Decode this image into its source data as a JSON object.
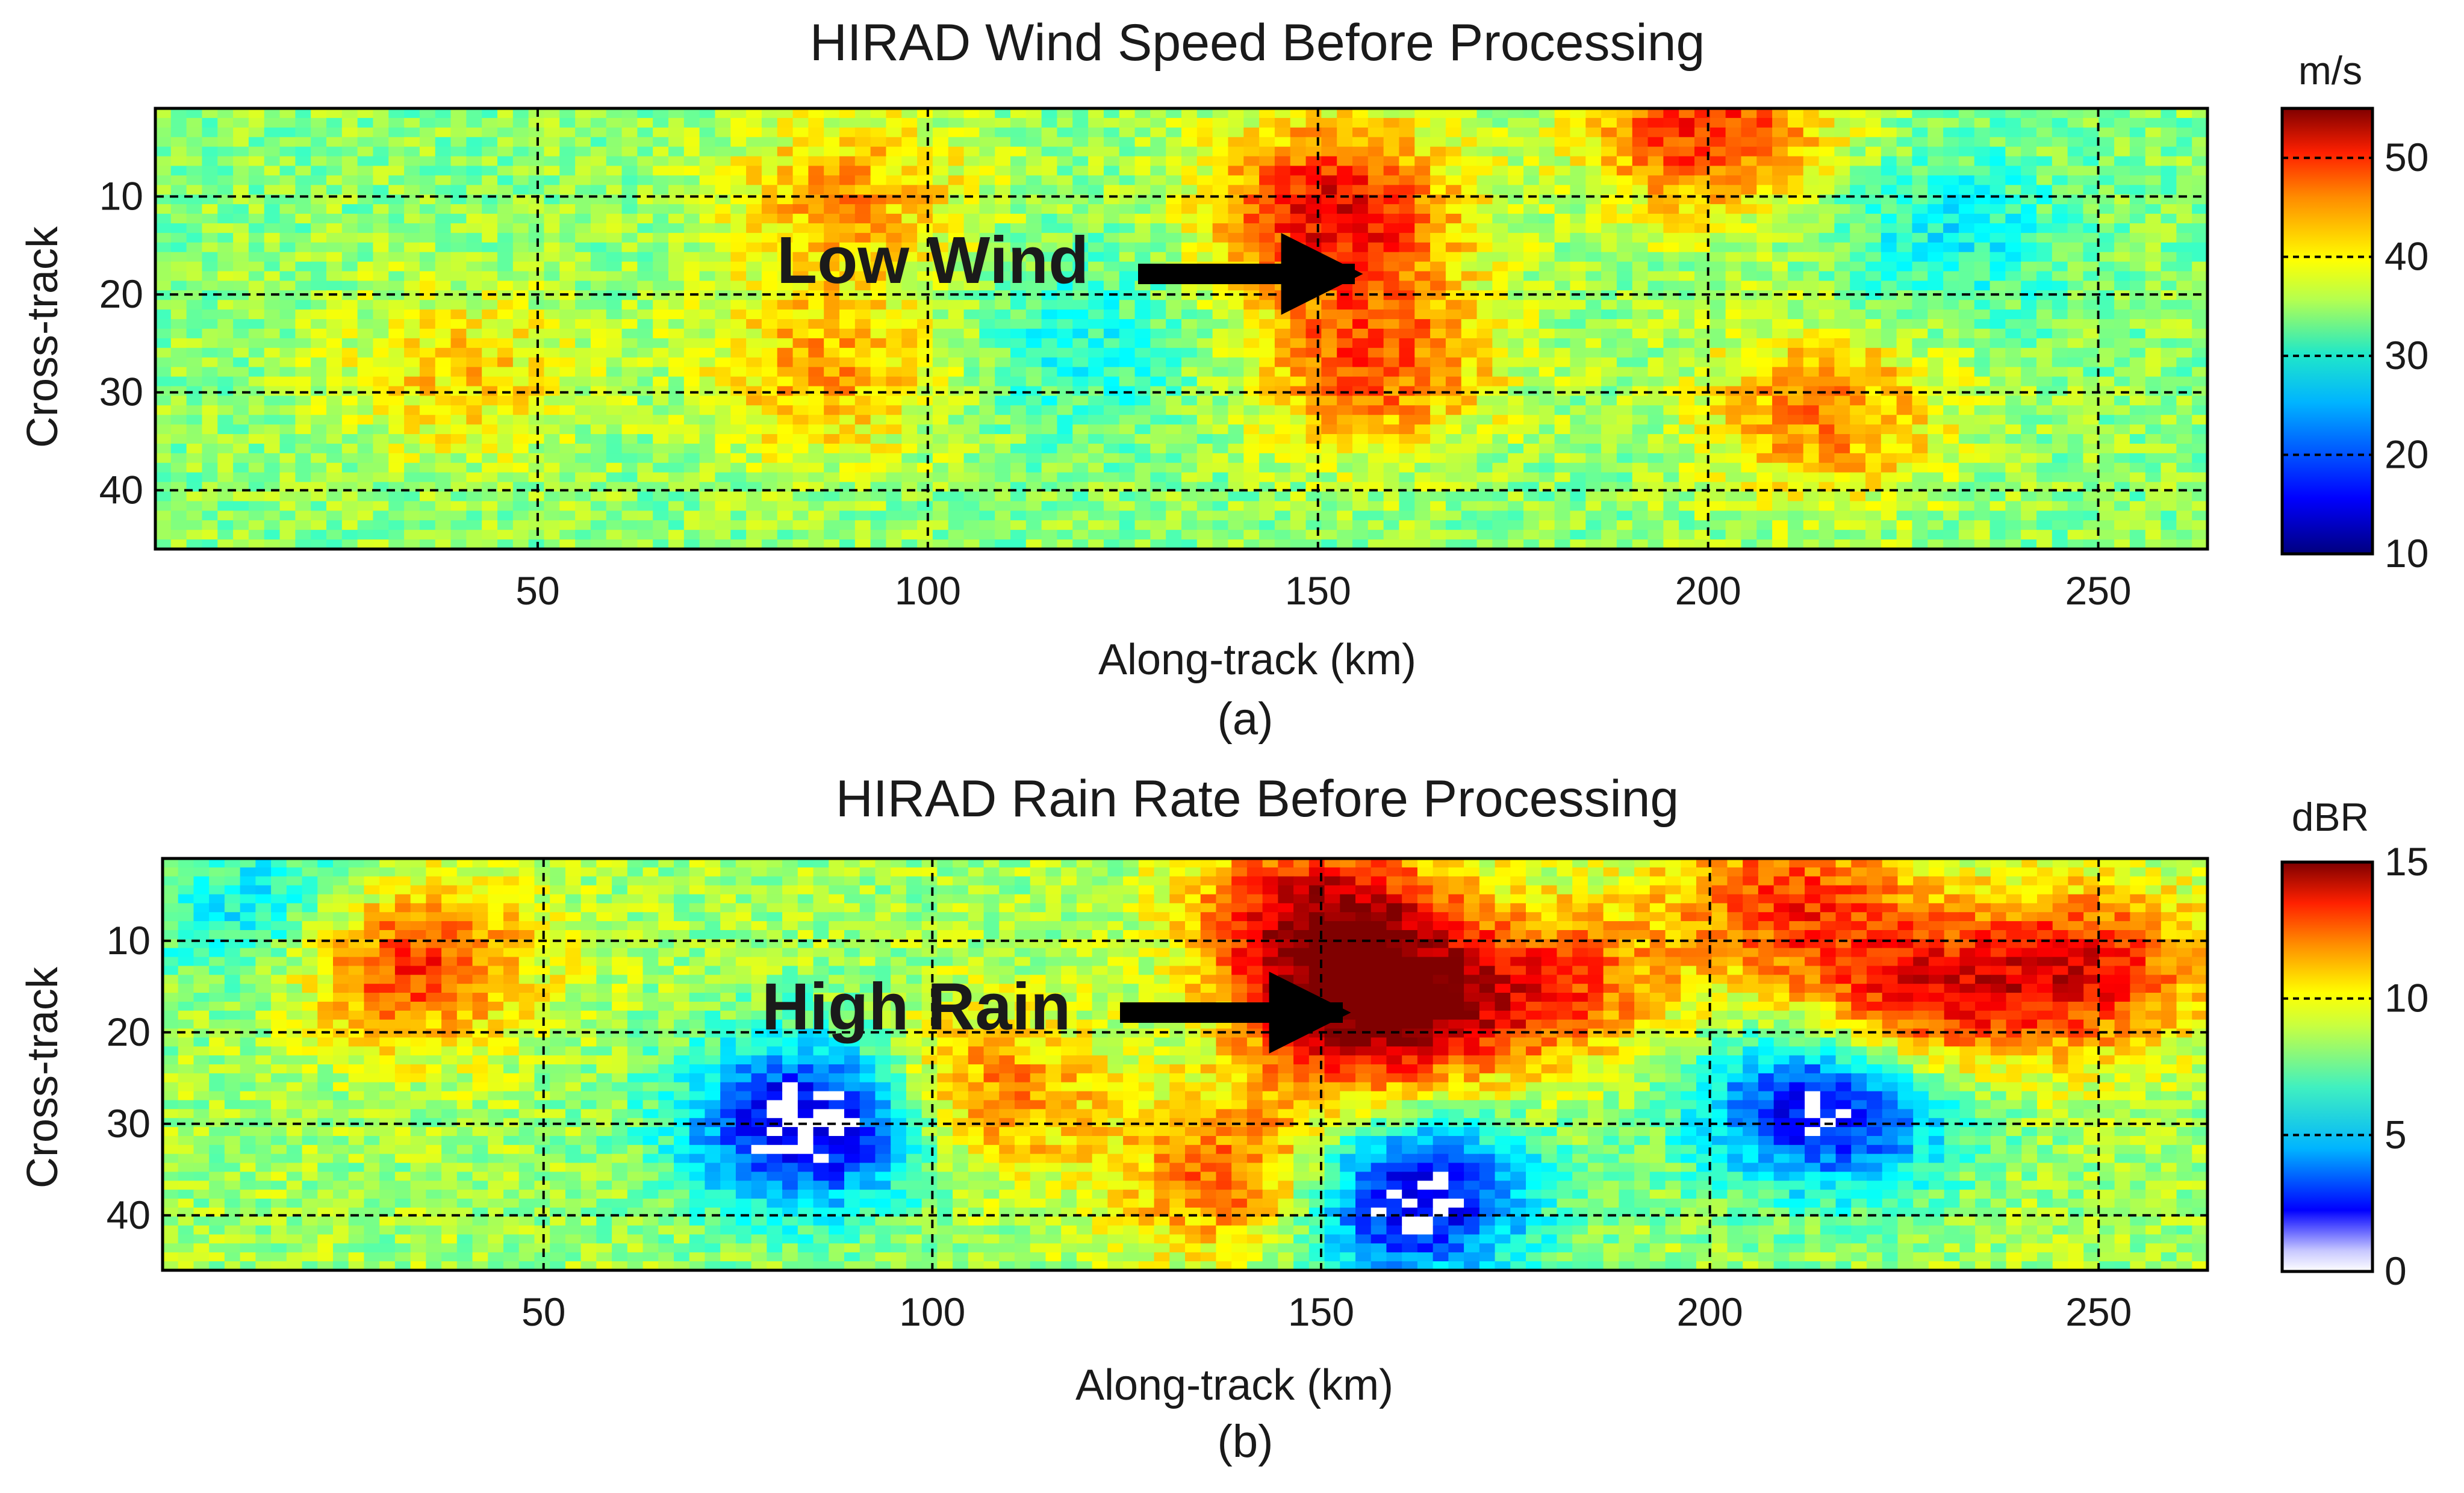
{
  "figure": {
    "panels": [
      {
        "id": "a",
        "caption": "(a)",
        "annotation": "Low Wind"
      },
      {
        "id": "b",
        "caption": "(b)",
        "annotation": "High Rain"
      }
    ]
  },
  "chart_data": [
    {
      "type": "heatmap",
      "title": "HIRAD Wind Speed Before Processing",
      "xlabel": "Along-track (km)",
      "ylabel": "Cross-track",
      "xlim": [
        1,
        264
      ],
      "ylim": [
        46,
        1
      ],
      "xticks": [
        50,
        100,
        150,
        200,
        250
      ],
      "yticks": [
        10,
        20,
        30,
        40
      ],
      "grid": true,
      "colorbar": {
        "label": "m/s",
        "range": [
          10,
          55
        ],
        "ticks": [
          10,
          20,
          30,
          40,
          50
        ]
      },
      "colormap": "jet",
      "annotation": {
        "text": "Low Wind",
        "points_to": {
          "x": 155,
          "y": 17
        }
      },
      "features": [
        {
          "kind": "high",
          "x": 40,
          "y": 28,
          "value": 40
        },
        {
          "kind": "high",
          "x": 90,
          "y": 10,
          "value": 42
        },
        {
          "kind": "high",
          "x": 87,
          "y": 28,
          "value": 42
        },
        {
          "kind": "high",
          "x": 152,
          "y": 11,
          "value": 50
        },
        {
          "kind": "high",
          "x": 157,
          "y": 27,
          "value": 46
        },
        {
          "kind": "high",
          "x": 200,
          "y": 3,
          "value": 48
        },
        {
          "kind": "high",
          "x": 215,
          "y": 32,
          "value": 44
        },
        {
          "kind": "low",
          "x": 120,
          "y": 25,
          "value": 28
        },
        {
          "kind": "low",
          "x": 230,
          "y": 14,
          "value": 27
        }
      ],
      "background_value": 33
    },
    {
      "type": "heatmap",
      "title": "HIRAD Rain Rate Before Processing",
      "xlabel": "Along-track (km)",
      "ylabel": "Cross-track",
      "xlim": [
        1,
        264
      ],
      "ylim": [
        46,
        1
      ],
      "xticks": [
        50,
        100,
        150,
        200,
        250
      ],
      "yticks": [
        10,
        20,
        30,
        40
      ],
      "grid": true,
      "colorbar": {
        "label": "dBR",
        "range": [
          0,
          15
        ],
        "ticks": [
          0,
          5,
          10,
          15
        ]
      },
      "colormap": "jet-white-below",
      "annotation": {
        "text": "High Rain",
        "points_to": {
          "x": 152,
          "y": 17
        }
      },
      "features": [
        {
          "kind": "high",
          "x": 32,
          "y": 12,
          "value": 13
        },
        {
          "kind": "high",
          "x": 150,
          "y": 7,
          "value": 14
        },
        {
          "kind": "high",
          "x": 157,
          "y": 18,
          "value": 15
        },
        {
          "kind": "high",
          "x": 142,
          "y": 36,
          "value": 13
        },
        {
          "kind": "high",
          "x": 105,
          "y": 27,
          "value": 12
        },
        {
          "kind": "high",
          "x": 180,
          "y": 15,
          "value": 12
        },
        {
          "kind": "high",
          "x": 225,
          "y": 17,
          "value": 13
        },
        {
          "kind": "high",
          "x": 248,
          "y": 13,
          "value": 13
        },
        {
          "kind": "high",
          "x": 210,
          "y": 5,
          "value": 12
        },
        {
          "kind": "low",
          "x": 85,
          "y": 30,
          "value": 0
        },
        {
          "kind": "low",
          "x": 160,
          "y": 38,
          "value": 0
        },
        {
          "kind": "low",
          "x": 215,
          "y": 28,
          "value": 1
        },
        {
          "kind": "low",
          "x": 15,
          "y": 7,
          "value": 5
        }
      ],
      "background_value": 8
    }
  ]
}
